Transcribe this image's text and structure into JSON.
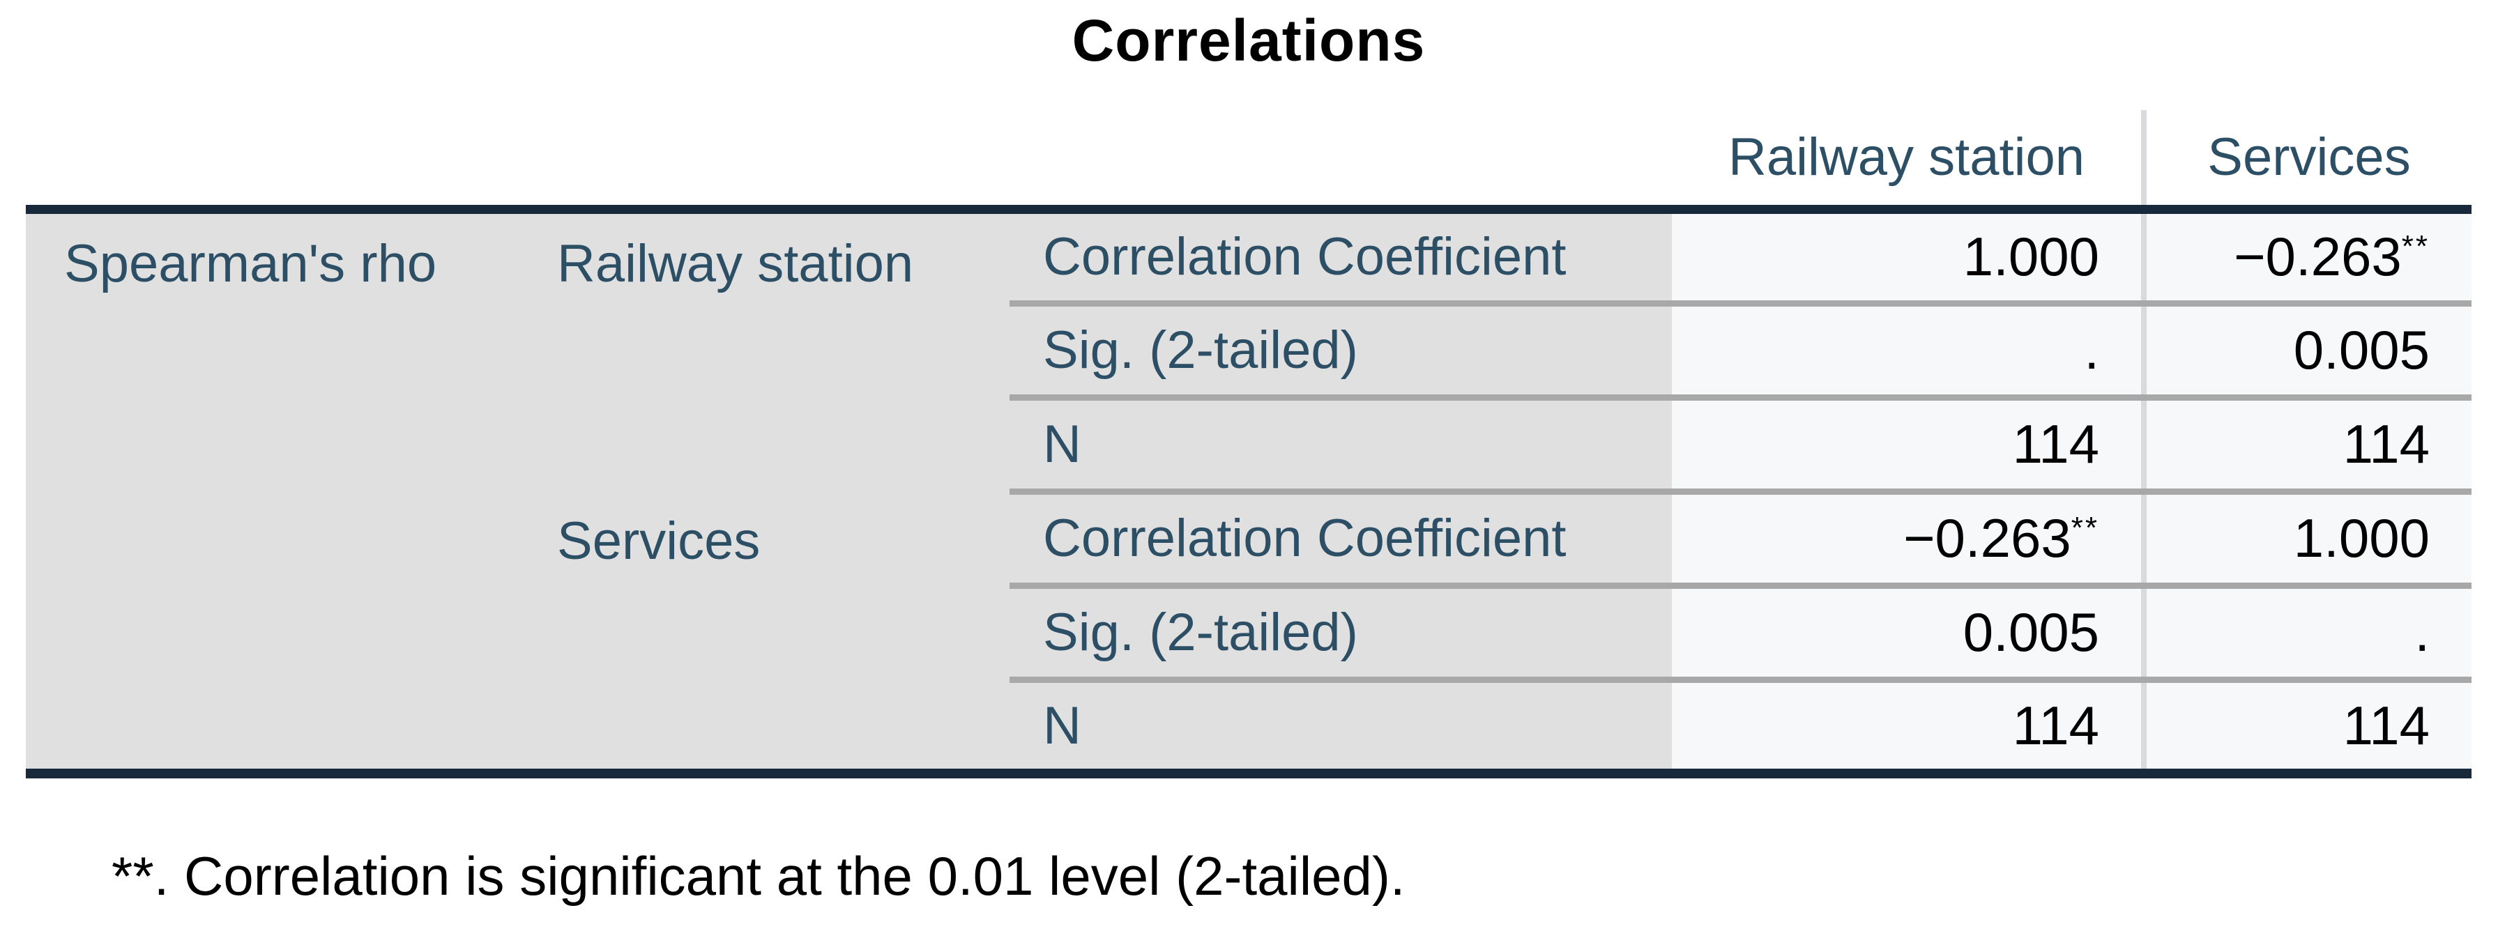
{
  "title": "Correlations",
  "table": {
    "column_headers": [
      "Railway station",
      "Services"
    ],
    "method_label": "Spearman's rho",
    "groups": [
      {
        "variable": "Railway station",
        "rows": [
          {
            "stat": "Correlation Coefficient",
            "railway_station": "1.000",
            "railway_station_sup": "",
            "services": "−0.263",
            "services_sup": "**"
          },
          {
            "stat": "Sig. (2-tailed)",
            "railway_station": ".",
            "railway_station_sup": "",
            "services": "0.005",
            "services_sup": ""
          },
          {
            "stat": "N",
            "railway_station": "114",
            "railway_station_sup": "",
            "services": "114",
            "services_sup": ""
          }
        ]
      },
      {
        "variable": "Services",
        "rows": [
          {
            "stat": "Correlation Coefficient",
            "railway_station": "−0.263",
            "railway_station_sup": "**",
            "services": "1.000",
            "services_sup": ""
          },
          {
            "stat": "Sig. (2-tailed)",
            "railway_station": "0.005",
            "railway_station_sup": "",
            "services": ".",
            "services_sup": ""
          },
          {
            "stat": "N",
            "railway_station": "114",
            "railway_station_sup": "",
            "services": "114",
            "services_sup": ""
          }
        ]
      }
    ],
    "footnote": "**. Correlation is significant at the 0.01 level (2-tailed)."
  },
  "colors": {
    "heavy_rule": "#17293a",
    "label_text": "#2d4f66",
    "stub_background": "#e0e0e0",
    "data_background": "#f7f8f9",
    "row_divider": "#a8a8a8",
    "column_divider": "#d9dadb",
    "value_text": "#000000"
  },
  "chart_data": {
    "type": "table",
    "title": "Correlations",
    "method": "Spearman's rho",
    "variables": [
      "Railway station",
      "Services"
    ],
    "statistics": [
      "Correlation Coefficient",
      "Sig. (2-tailed)",
      "N"
    ],
    "columns": [
      "Railway station",
      "Services"
    ],
    "cells": {
      "Railway station": {
        "Correlation Coefficient": [
          "1.000",
          "−0.263**"
        ],
        "Sig. (2-tailed)": [
          ".",
          "0.005"
        ],
        "N": [
          "114",
          "114"
        ]
      },
      "Services": {
        "Correlation Coefficient": [
          "−0.263**",
          "1.000"
        ],
        "Sig. (2-tailed)": [
          "0.005",
          "."
        ],
        "N": [
          "114",
          "114"
        ]
      }
    },
    "spearman_correlation": -0.263,
    "p_value": 0.005,
    "sample_size": 114,
    "footnote": "**. Correlation is significant at the 0.01 level (2-tailed)."
  }
}
